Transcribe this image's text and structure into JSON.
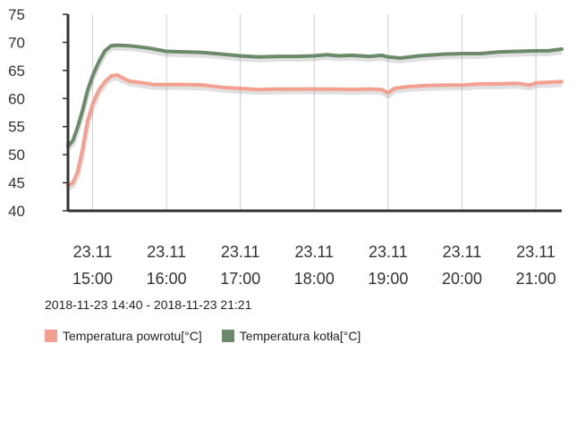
{
  "range_label": "2018-11-23 14:40 - 2018-11-23 21:21",
  "legend": [
    {
      "label": "Temperatura powrotu[°C]",
      "color": "#f4a090"
    },
    {
      "label": "Temperatura kotła[°C]",
      "color": "#6b8a6a"
    }
  ],
  "chart_data": {
    "type": "line",
    "x_tick_labels": [
      {
        "date": "23.11",
        "time": "15:00"
      },
      {
        "date": "23.11",
        "time": "16:00"
      },
      {
        "date": "23.11",
        "time": "17:00"
      },
      {
        "date": "23.11",
        "time": "18:00"
      },
      {
        "date": "23.11",
        "time": "19:00"
      },
      {
        "date": "23.11",
        "time": "20:00"
      },
      {
        "date": "23.11",
        "time": "21:00"
      }
    ],
    "x_ticks": [
      "15:00",
      "16:00",
      "17:00",
      "18:00",
      "19:00",
      "20:00",
      "21:00"
    ],
    "xlim": [
      "14:40",
      "21:21"
    ],
    "ylim": [
      40,
      75
    ],
    "y_ticks": [
      40,
      45,
      50,
      55,
      60,
      65,
      70,
      75
    ],
    "grid": "vertical",
    "legend_position": "bottom-left",
    "series": [
      {
        "name": "Temperatura powrotu[°C]",
        "color": "#f4a090",
        "points": [
          [
            "14:40",
            44.5
          ],
          [
            "14:44",
            45.0
          ],
          [
            "14:48",
            47.0
          ],
          [
            "14:52",
            51.0
          ],
          [
            "14:56",
            56.0
          ],
          [
            "15:00",
            59.0
          ],
          [
            "15:05",
            61.5
          ],
          [
            "15:10",
            63.0
          ],
          [
            "15:15",
            64.0
          ],
          [
            "15:20",
            64.2
          ],
          [
            "15:25",
            63.6
          ],
          [
            "15:30",
            63.1
          ],
          [
            "15:40",
            62.8
          ],
          [
            "15:50",
            62.5
          ],
          [
            "16:00",
            62.5
          ],
          [
            "16:15",
            62.5
          ],
          [
            "16:30",
            62.4
          ],
          [
            "16:45",
            62.0
          ],
          [
            "17:00",
            61.8
          ],
          [
            "17:15",
            61.6
          ],
          [
            "17:30",
            61.7
          ],
          [
            "17:45",
            61.7
          ],
          [
            "18:00",
            61.7
          ],
          [
            "18:15",
            61.7
          ],
          [
            "18:30",
            61.6
          ],
          [
            "18:45",
            61.7
          ],
          [
            "18:55",
            61.6
          ],
          [
            "19:00",
            61.0
          ],
          [
            "19:05",
            61.8
          ],
          [
            "19:15",
            62.1
          ],
          [
            "19:30",
            62.3
          ],
          [
            "19:45",
            62.4
          ],
          [
            "20:00",
            62.4
          ],
          [
            "20:15",
            62.6
          ],
          [
            "20:30",
            62.6
          ],
          [
            "20:45",
            62.7
          ],
          [
            "20:55",
            62.4
          ],
          [
            "21:00",
            62.8
          ],
          [
            "21:10",
            62.9
          ],
          [
            "21:21",
            63.0
          ]
        ]
      },
      {
        "name": "Temperatura kotła[°C]",
        "color": "#6b8a6a",
        "points": [
          [
            "14:40",
            51.5
          ],
          [
            "14:44",
            52.5
          ],
          [
            "14:48",
            55.0
          ],
          [
            "14:52",
            58.0
          ],
          [
            "14:56",
            61.5
          ],
          [
            "15:00",
            64.0
          ],
          [
            "15:05",
            66.5
          ],
          [
            "15:10",
            68.5
          ],
          [
            "15:15",
            69.4
          ],
          [
            "15:20",
            69.5
          ],
          [
            "15:30",
            69.4
          ],
          [
            "15:45",
            69.0
          ],
          [
            "16:00",
            68.4
          ],
          [
            "16:15",
            68.3
          ],
          [
            "16:30",
            68.2
          ],
          [
            "16:45",
            67.9
          ],
          [
            "17:00",
            67.6
          ],
          [
            "17:15",
            67.4
          ],
          [
            "17:30",
            67.5
          ],
          [
            "17:45",
            67.5
          ],
          [
            "18:00",
            67.6
          ],
          [
            "18:10",
            67.8
          ],
          [
            "18:20",
            67.6
          ],
          [
            "18:30",
            67.7
          ],
          [
            "18:45",
            67.5
          ],
          [
            "18:55",
            67.7
          ],
          [
            "19:00",
            67.4
          ],
          [
            "19:10",
            67.2
          ],
          [
            "19:25",
            67.6
          ],
          [
            "19:45",
            67.9
          ],
          [
            "20:00",
            68.0
          ],
          [
            "20:15",
            68.0
          ],
          [
            "20:30",
            68.3
          ],
          [
            "20:45",
            68.4
          ],
          [
            "21:00",
            68.5
          ],
          [
            "21:10",
            68.5
          ],
          [
            "21:21",
            68.8
          ]
        ]
      }
    ]
  }
}
